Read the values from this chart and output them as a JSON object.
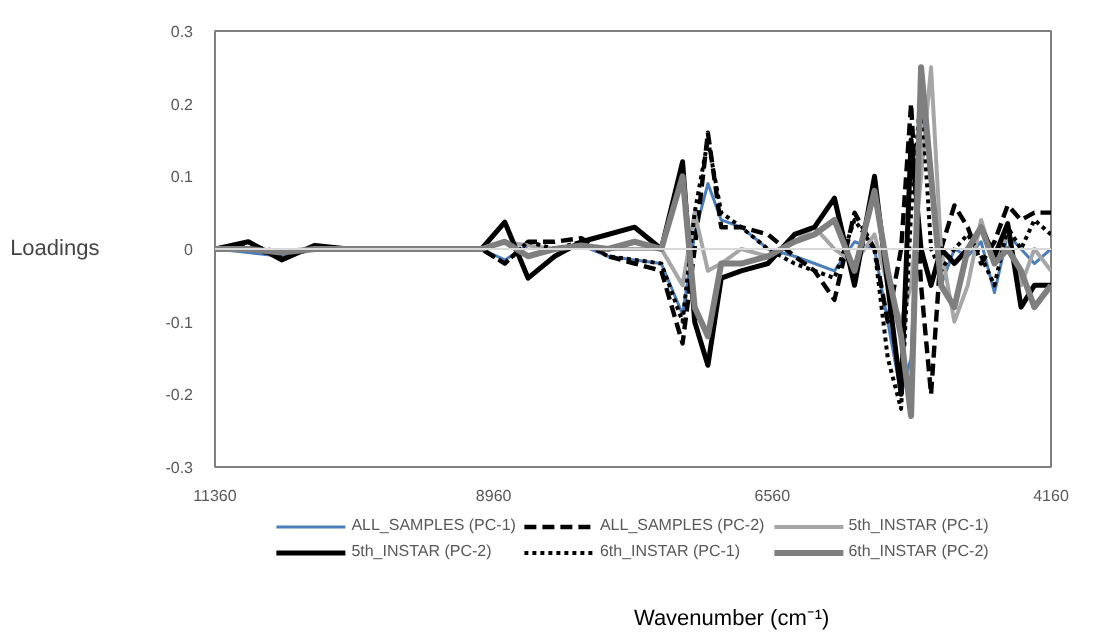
{
  "chart_data": {
    "type": "line",
    "xlabel": "Wavenumber (cm⁻¹)",
    "ylabel": "Loadings",
    "x": [
      11360,
      11073,
      10786,
      10499,
      10213,
      9926,
      9639,
      9352,
      9065,
      8864,
      8664,
      8434,
      8205,
      7975,
      7746,
      7516,
      7333,
      7229,
      7115,
      7000,
      6828,
      6598,
      6369,
      6197,
      6025,
      5852,
      5680,
      5566,
      5451,
      5365,
      5279,
      5193,
      5107,
      4992,
      4877,
      4762,
      4647,
      4533,
      4418,
      4303,
      4160
    ],
    "xlim": [
      11360,
      4160
    ],
    "xticks": [
      11360,
      8960,
      6560,
      4160
    ],
    "ylim": [
      -0.3,
      0.3
    ],
    "yticks": [
      -0.3,
      -0.2,
      -0.1,
      0,
      0.1,
      0.2,
      0.3
    ],
    "grid": false,
    "legend": "bottom",
    "ref_lines": [
      {
        "axis": "y",
        "value": 0,
        "color": "#d9d9d9"
      }
    ],
    "series": [
      {
        "name": "ALL_SAMPLES (PC-1)",
        "color": "#4a7ebb",
        "line_style": "solid",
        "values": [
          0,
          -0.005,
          -0.01,
          0,
          0,
          0,
          0,
          0,
          0,
          -0.015,
          0.005,
          0,
          0.005,
          -0.01,
          -0.015,
          -0.02,
          -0.09,
          0.02,
          0.09,
          0.04,
          0.03,
          0,
          -0.01,
          -0.02,
          -0.03,
          0.01,
          0,
          -0.1,
          -0.2,
          -0.15,
          0.2,
          0.1,
          -0.05,
          0,
          -0.01,
          0.01,
          -0.06,
          0.02,
          0,
          -0.02,
          0
        ]
      },
      {
        "name": "ALL_SAMPLES (PC-2)",
        "color": "#000000",
        "line_style": "dashed",
        "values": [
          0,
          0.005,
          -0.005,
          0,
          0,
          0,
          0,
          0,
          0,
          -0.02,
          0.01,
          0.01,
          0.015,
          -0.01,
          -0.02,
          -0.03,
          -0.13,
          0,
          0.16,
          0.03,
          0.03,
          0.02,
          -0.01,
          -0.03,
          -0.07,
          0.05,
          0,
          -0.1,
          0,
          0.2,
          -0.05,
          -0.2,
          0,
          0.06,
          0.03,
          -0.02,
          0.01,
          0.06,
          0.04,
          0.05,
          0.05
        ]
      },
      {
        "name": "5th_INSTAR (PC-1)",
        "color": "#a6a6a6",
        "line_style": "solid",
        "values": [
          0,
          0,
          -0.005,
          0,
          0,
          0,
          0,
          0,
          0,
          0.01,
          0.005,
          0,
          0.005,
          0,
          0,
          0,
          -0.05,
          0.05,
          -0.03,
          -0.02,
          0,
          -0.01,
          0.01,
          0.03,
          0,
          -0.02,
          0.02,
          -0.05,
          -0.1,
          -0.05,
          0.1,
          0.25,
          0,
          -0.1,
          -0.05,
          0.04,
          -0.02,
          0.02,
          -0.05,
          0,
          -0.03
        ]
      },
      {
        "name": "5th_INSTAR (PC-2)",
        "color": "#000000",
        "line_style": "solid",
        "values": [
          0,
          0.01,
          -0.015,
          0.005,
          0,
          0,
          0,
          0,
          0,
          0.037,
          -0.04,
          -0.01,
          0.01,
          0.02,
          0.03,
          0,
          0.12,
          -0.1,
          -0.16,
          -0.04,
          -0.03,
          -0.02,
          0.02,
          0.03,
          0.07,
          -0.05,
          0.1,
          -0.05,
          -0.2,
          0.15,
          0,
          -0.05,
          0,
          -0.02,
          0,
          0.03,
          -0.01,
          0.035,
          -0.08,
          -0.05,
          -0.05
        ]
      },
      {
        "name": "6th_INSTAR (PC-1)",
        "color": "#000000",
        "line_style": "dotted",
        "values": [
          0,
          0,
          -0.01,
          0,
          0,
          0,
          0,
          0,
          0,
          -0.02,
          0.01,
          0,
          0.01,
          -0.01,
          -0.015,
          -0.02,
          -0.1,
          0.05,
          0.15,
          0.05,
          0.03,
          0,
          -0.02,
          -0.03,
          -0.04,
          0.04,
          0,
          -0.15,
          -0.22,
          0.05,
          0.22,
          0,
          -0.03,
          0,
          0.02,
          -0.01,
          -0.05,
          0.03,
          0,
          0.04,
          0.02
        ]
      },
      {
        "name": "6th_INSTAR (PC-2)",
        "color": "#7f7f7f",
        "line_style": "solid",
        "values": [
          0,
          0,
          -0.005,
          0,
          0,
          0,
          0,
          0,
          0,
          0.01,
          -0.01,
          0,
          0.005,
          0,
          0.01,
          0,
          0.1,
          -0.08,
          -0.12,
          -0.02,
          -0.02,
          -0.01,
          0.01,
          0.02,
          0.04,
          -0.03,
          0.08,
          -0.03,
          -0.12,
          -0.23,
          0.25,
          0.1,
          -0.05,
          -0.08,
          0,
          0.03,
          -0.02,
          0,
          -0.03,
          -0.08,
          -0.05
        ]
      }
    ]
  }
}
